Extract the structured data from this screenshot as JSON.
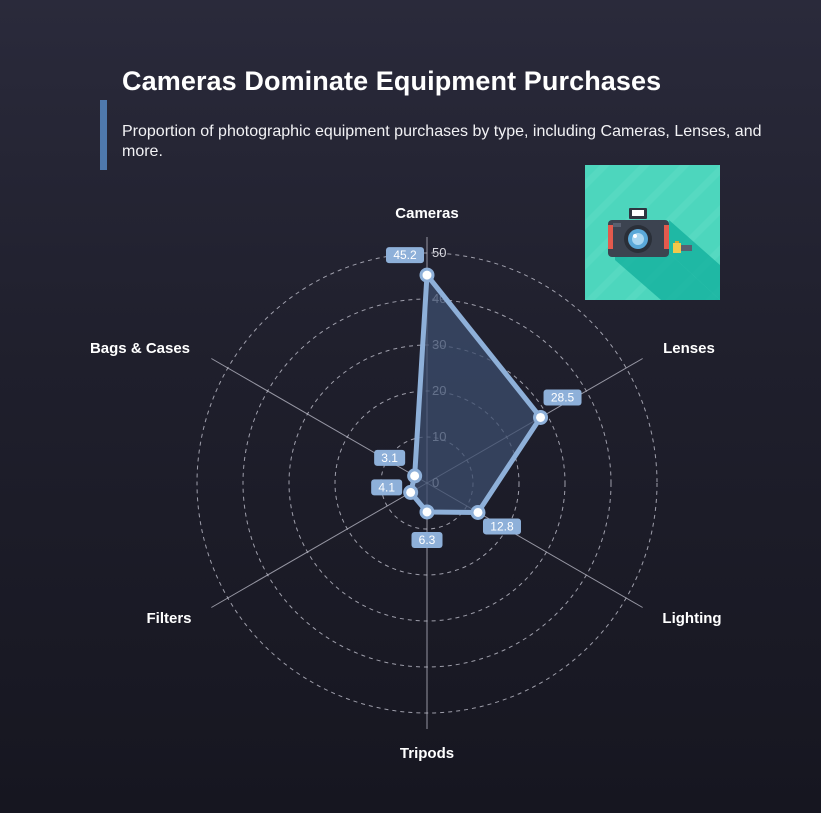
{
  "header": {
    "title": "Cameras Dominate Equipment Purchases",
    "subtitle": "Proportion of photographic equipment purchases by type, including Cameras, Lenses, and more."
  },
  "icon": {
    "name": "camera-icon"
  },
  "colors": {
    "series": "#8eb0d9",
    "series_fill": "#3c4d6e",
    "label_box": "#8eb0d9",
    "grid": "#bfbfcc",
    "icon_bg": "#4dd6bd",
    "accent": "#4f79ad"
  },
  "chart_data": {
    "type": "radar",
    "categories": [
      "Cameras",
      "Lenses",
      "Lighting",
      "Tripods",
      "Filters",
      "Bags & Cases"
    ],
    "values": [
      45.2,
      28.5,
      12.8,
      6.3,
      4.1,
      3.1
    ],
    "radial_ticks": [
      0,
      10,
      20,
      30,
      40,
      50
    ],
    "rlim": [
      0,
      50
    ],
    "grid": true,
    "grid_style": "dashed",
    "legend": false
  }
}
